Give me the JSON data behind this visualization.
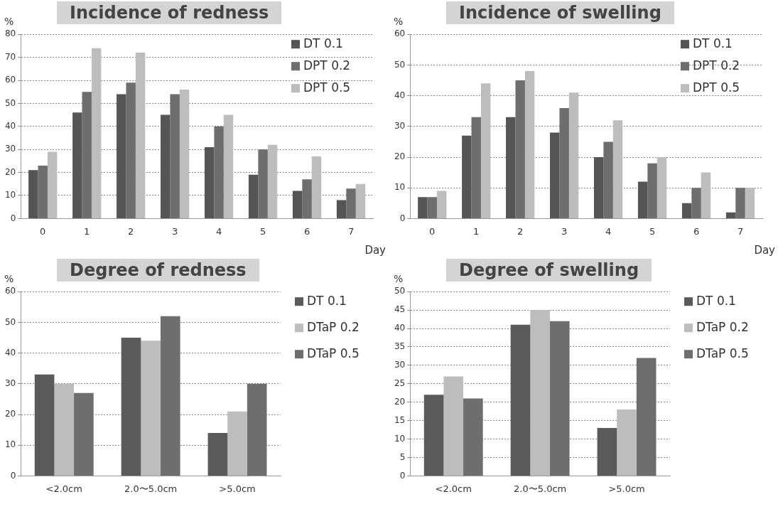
{
  "chart_data": [
    {
      "type": "bar",
      "title": "Incidence of redness",
      "ylabel": "%",
      "xlabel": "Day",
      "categories": [
        "0",
        "1",
        "2",
        "3",
        "4",
        "5",
        "6",
        "7"
      ],
      "series": [
        {
          "name": "DT 0.1",
          "color": "#555555",
          "values": [
            21,
            46,
            54,
            45,
            31,
            19,
            12,
            8
          ]
        },
        {
          "name": "DPT 0.2",
          "color": "#6e6e6e",
          "values": [
            23,
            55,
            59,
            54,
            40,
            30,
            17,
            13
          ]
        },
        {
          "name": "DPT 0.5",
          "color": "#bdbdbd",
          "values": [
            29,
            74,
            72,
            56,
            45,
            32,
            27,
            15
          ]
        }
      ],
      "ylim": [
        0,
        80
      ],
      "yticks": [
        0,
        10,
        20,
        30,
        40,
        50,
        60,
        70,
        80
      ],
      "grid": "y",
      "legend": "top right"
    },
    {
      "type": "bar",
      "title": "Incidence of swelling",
      "ylabel": "%",
      "xlabel": "Day",
      "categories": [
        "0",
        "1",
        "2",
        "3",
        "4",
        "5",
        "6",
        "7"
      ],
      "series": [
        {
          "name": "DT 0.1",
          "color": "#555555",
          "values": [
            7,
            27,
            33,
            28,
            20,
            12,
            5,
            2
          ]
        },
        {
          "name": "DPT 0.2",
          "color": "#6e6e6e",
          "values": [
            7,
            33,
            45,
            36,
            25,
            18,
            10,
            10
          ]
        },
        {
          "name": "DPT 0.5",
          "color": "#bdbdbd",
          "values": [
            9,
            44,
            48,
            41,
            32,
            20,
            15,
            10
          ]
        }
      ],
      "ylim": [
        0,
        60
      ],
      "yticks": [
        0,
        10,
        20,
        30,
        40,
        50,
        60
      ],
      "grid": "y",
      "legend": "top right"
    },
    {
      "type": "bar",
      "title": "Degree of redness",
      "ylabel": "%",
      "categories": [
        "<2.0cm",
        "2.0〜5.0cm",
        ">5.0cm"
      ],
      "series": [
        {
          "name": "DT 0.1",
          "color": "#5a5a5a",
          "values": [
            33,
            45,
            14
          ]
        },
        {
          "name": "DTaP 0.2",
          "color": "#bdbdbd",
          "values": [
            30,
            44,
            21
          ]
        },
        {
          "name": "DTaP 0.5",
          "color": "#6e6e6e",
          "values": [
            27,
            52,
            30
          ]
        }
      ],
      "ylim": [
        0,
        60
      ],
      "yticks": [
        0,
        10,
        20,
        30,
        40,
        50,
        60
      ],
      "grid": "y",
      "legend": "right"
    },
    {
      "type": "bar",
      "title": "Degree of swelling",
      "ylabel": "%",
      "categories": [
        "<2.0cm",
        "2.0〜5.0cm",
        ">5.0cm"
      ],
      "series": [
        {
          "name": "DT 0.1",
          "color": "#5a5a5a",
          "values": [
            22,
            41,
            13
          ]
        },
        {
          "name": "DTaP 0.2",
          "color": "#bdbdbd",
          "values": [
            27,
            45,
            18
          ]
        },
        {
          "name": "DTaP 0.5",
          "color": "#6e6e6e",
          "values": [
            21,
            42,
            32
          ]
        }
      ],
      "ylim": [
        0,
        50
      ],
      "yticks": [
        0,
        5,
        10,
        15,
        20,
        25,
        30,
        35,
        40,
        45,
        50
      ],
      "grid": "y",
      "legend": "right"
    }
  ]
}
